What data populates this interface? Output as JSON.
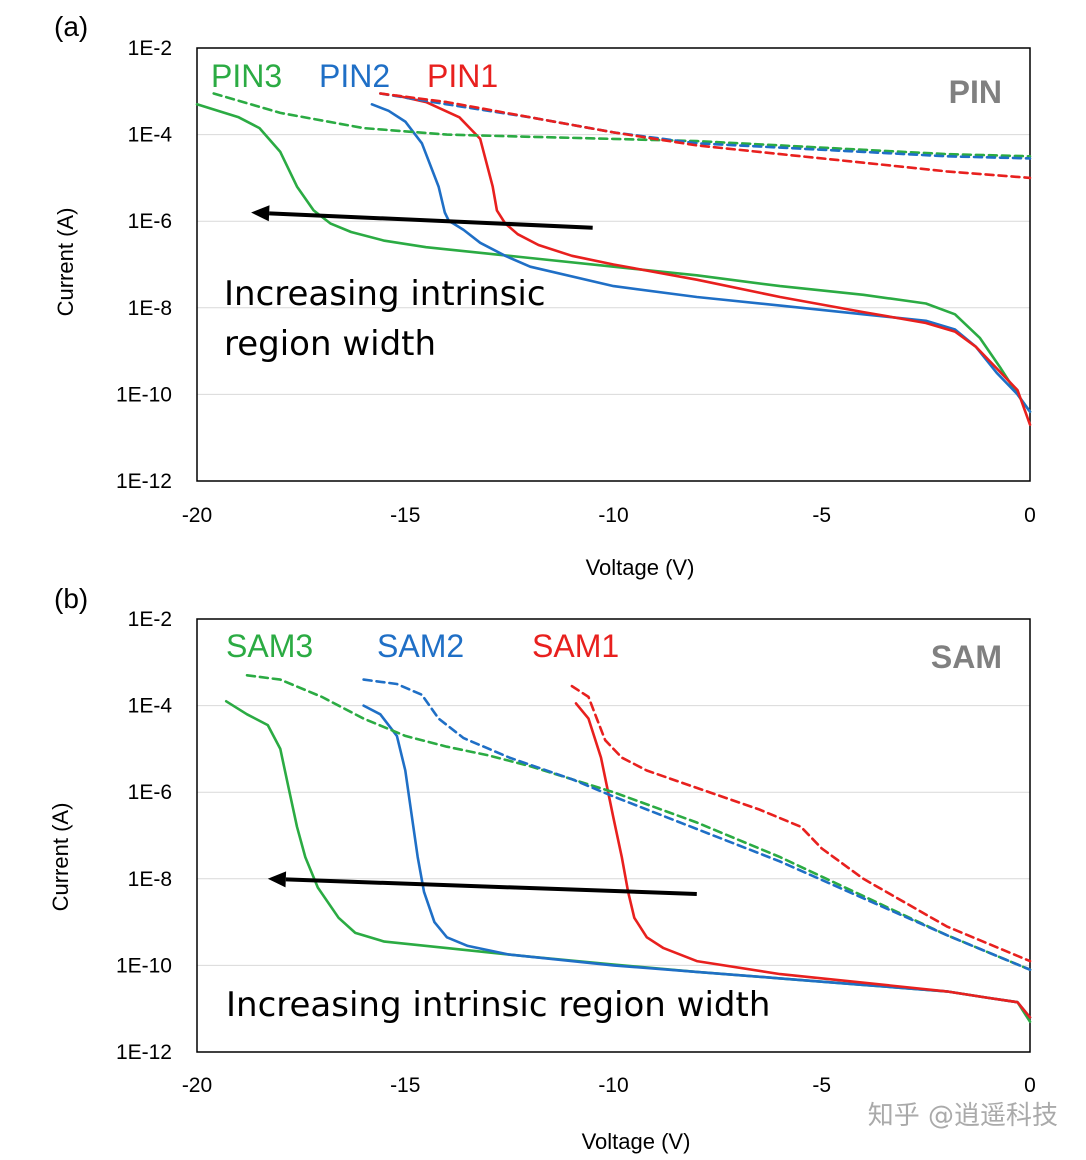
{
  "colors": {
    "PIN1": "#e8201e",
    "PIN2": "#1f6fc6",
    "PIN3": "#2bab43",
    "SAM1": "#e8201e",
    "SAM2": "#1f6fc6",
    "SAM3": "#2bab43",
    "grid": "#d9d9d9",
    "arrow": "#000000",
    "device_label": "#808080"
  },
  "watermark": "知乎 @逍遥科技",
  "chart_data": [
    {
      "panel_label": "(a)",
      "device_label": "PIN",
      "type": "line",
      "xlabel": "Voltage (V)",
      "ylabel": "Current (A)",
      "xlim": [
        -20,
        0
      ],
      "ylim_log10": [
        -12,
        -2
      ],
      "xticks": [
        "-20",
        "-15",
        "-10",
        "-5",
        "0"
      ],
      "yticks": [
        "1E-12",
        "1E-10",
        "1E-8",
        "1E-6",
        "1E-4",
        "1E-2"
      ],
      "annotation": "Increasing intrinsic\nregion width",
      "arrow": {
        "from": [
          -10.5,
          -6.15
        ],
        "to": [
          -18.7,
          -5.8
        ]
      },
      "series": [
        {
          "name": "PIN3",
          "style": "solid",
          "x": [
            -20,
            -19.5,
            -19,
            -18.5,
            -18,
            -17.6,
            -17.2,
            -16.8,
            -16.3,
            -15.5,
            -14.5,
            -13,
            -12,
            -10,
            -8,
            -6,
            -4,
            -2.5,
            -1.8,
            -1.2,
            -0.7,
            -0.3,
            0
          ],
          "log10y": [
            -3.3,
            -3.45,
            -3.6,
            -3.85,
            -4.4,
            -5.2,
            -5.75,
            -6.05,
            -6.25,
            -6.45,
            -6.6,
            -6.75,
            -6.85,
            -7.05,
            -7.25,
            -7.5,
            -7.7,
            -7.9,
            -8.15,
            -8.7,
            -9.4,
            -10.0,
            -10.4
          ]
        },
        {
          "name": "PIN2",
          "style": "solid",
          "x": [
            -15.8,
            -15.4,
            -15,
            -14.6,
            -14.2,
            -14.05,
            -13.95,
            -13.85,
            -13.6,
            -13.2,
            -12.6,
            -12,
            -10,
            -8,
            -6,
            -4,
            -2.5,
            -1.8,
            -1.3,
            -0.8,
            -0.3,
            0
          ],
          "log10y": [
            -3.3,
            -3.45,
            -3.7,
            -4.2,
            -5.2,
            -5.8,
            -6.0,
            -6.05,
            -6.2,
            -6.5,
            -6.8,
            -7.05,
            -7.5,
            -7.75,
            -7.95,
            -8.15,
            -8.3,
            -8.5,
            -8.9,
            -9.5,
            -10.0,
            -10.4
          ]
        },
        {
          "name": "PIN1",
          "style": "solid",
          "x": [
            -15.2,
            -14.5,
            -13.7,
            -13.2,
            -12.9,
            -12.8,
            -12.6,
            -12.3,
            -11.8,
            -11,
            -10,
            -8,
            -6,
            -4,
            -2.5,
            -1.8,
            -1.3,
            -0.8,
            -0.3,
            0
          ],
          "log10y": [
            -3.1,
            -3.25,
            -3.6,
            -4.1,
            -5.2,
            -5.75,
            -6.05,
            -6.3,
            -6.55,
            -6.8,
            -7.0,
            -7.35,
            -7.75,
            -8.1,
            -8.35,
            -8.55,
            -8.9,
            -9.4,
            -9.9,
            -10.7
          ]
        },
        {
          "name": "PIN3",
          "style": "dashed",
          "x": [
            -19.6,
            -18,
            -16,
            -14,
            -12,
            -10,
            -8,
            -6,
            -4,
            -2,
            0
          ],
          "log10y": [
            -3.05,
            -3.5,
            -3.85,
            -4.0,
            -4.05,
            -4.1,
            -4.15,
            -4.25,
            -4.35,
            -4.45,
            -4.5
          ]
        },
        {
          "name": "PIN2",
          "style": "dashed",
          "x": [
            -15.6,
            -14,
            -12,
            -10,
            -8,
            -6,
            -4,
            -2,
            0
          ],
          "log10y": [
            -3.05,
            -3.3,
            -3.6,
            -3.95,
            -4.2,
            -4.3,
            -4.4,
            -4.5,
            -4.55
          ]
        },
        {
          "name": "PIN1",
          "style": "dashed",
          "x": [
            -15.6,
            -14,
            -12,
            -10,
            -8,
            -6,
            -4,
            -2,
            0
          ],
          "log10y": [
            -3.05,
            -3.25,
            -3.6,
            -3.95,
            -4.25,
            -4.45,
            -4.65,
            -4.85,
            -5.0
          ]
        }
      ]
    },
    {
      "panel_label": "(b)",
      "device_label": "SAM",
      "type": "line",
      "xlabel": "Voltage (V)",
      "ylabel": "Current (A)",
      "xlim": [
        -20,
        0
      ],
      "ylim_log10": [
        -12,
        -2
      ],
      "xticks": [
        "-20",
        "-15",
        "-10",
        "-5",
        "0"
      ],
      "yticks": [
        "1E-12",
        "1E-10",
        "1E-8",
        "1E-6",
        "1E-4",
        "1E-2"
      ],
      "annotation": "Increasing intrinsic region width",
      "arrow": {
        "from": [
          -8.0,
          -8.35
        ],
        "to": [
          -18.3,
          -8.0
        ]
      },
      "series": [
        {
          "name": "SAM3",
          "style": "solid",
          "x": [
            -19.3,
            -18.8,
            -18.3,
            -18.0,
            -17.8,
            -17.6,
            -17.4,
            -17.1,
            -16.6,
            -16.2,
            -15.5,
            -14,
            -12,
            -10,
            -8,
            -6,
            -4,
            -2,
            -1,
            -0.3,
            0
          ],
          "log10y": [
            -3.9,
            -4.2,
            -4.45,
            -5.0,
            -5.9,
            -6.8,
            -7.5,
            -8.2,
            -8.9,
            -9.25,
            -9.45,
            -9.6,
            -9.8,
            -9.98,
            -10.15,
            -10.3,
            -10.45,
            -10.6,
            -10.75,
            -10.85,
            -11.3
          ]
        },
        {
          "name": "SAM2",
          "style": "solid",
          "x": [
            -16.0,
            -15.6,
            -15.2,
            -15.0,
            -14.85,
            -14.7,
            -14.55,
            -14.3,
            -14.0,
            -13.5,
            -12.5,
            -10,
            -8,
            -6,
            -4,
            -2,
            -1,
            -0.3,
            0
          ],
          "log10y": [
            -4.0,
            -4.2,
            -4.7,
            -5.5,
            -6.5,
            -7.5,
            -8.3,
            -9.0,
            -9.35,
            -9.55,
            -9.75,
            -10.0,
            -10.15,
            -10.3,
            -10.45,
            -10.6,
            -10.75,
            -10.85,
            -11.2
          ]
        },
        {
          "name": "SAM1",
          "style": "solid",
          "x": [
            -10.9,
            -10.6,
            -10.3,
            -10.0,
            -9.8,
            -9.65,
            -9.5,
            -9.2,
            -8.8,
            -8,
            -6,
            -4,
            -2,
            -1,
            -0.3,
            0
          ],
          "log10y": [
            -3.95,
            -4.3,
            -5.2,
            -6.6,
            -7.5,
            -8.3,
            -8.9,
            -9.35,
            -9.6,
            -9.9,
            -10.2,
            -10.4,
            -10.6,
            -10.75,
            -10.85,
            -11.2
          ]
        },
        {
          "name": "SAM3",
          "style": "dashed",
          "x": [
            -18.8,
            -18,
            -17,
            -16,
            -15,
            -14,
            -13,
            -12,
            -10,
            -8,
            -6,
            -4,
            -2,
            0
          ],
          "log10y": [
            -3.3,
            -3.4,
            -3.8,
            -4.3,
            -4.7,
            -4.95,
            -5.15,
            -5.4,
            -6.0,
            -6.7,
            -7.5,
            -8.4,
            -9.3,
            -10.1
          ]
        },
        {
          "name": "SAM2",
          "style": "dashed",
          "x": [
            -16.0,
            -15.2,
            -14.6,
            -14.2,
            -13.6,
            -12.5,
            -11,
            -10,
            -8,
            -6,
            -4,
            -2,
            0
          ],
          "log10y": [
            -3.4,
            -3.5,
            -3.75,
            -4.3,
            -4.75,
            -5.2,
            -5.7,
            -6.1,
            -6.85,
            -7.6,
            -8.45,
            -9.3,
            -10.1
          ]
        },
        {
          "name": "SAM1",
          "style": "dashed",
          "x": [
            -11.0,
            -10.6,
            -10.4,
            -10.2,
            -9.8,
            -9.2,
            -8,
            -6.5,
            -5.5,
            -5.0,
            -4,
            -2,
            0
          ],
          "log10y": [
            -3.55,
            -3.8,
            -4.3,
            -4.8,
            -5.2,
            -5.5,
            -5.9,
            -6.4,
            -6.8,
            -7.3,
            -8.0,
            -9.1,
            -9.9
          ]
        }
      ]
    }
  ]
}
